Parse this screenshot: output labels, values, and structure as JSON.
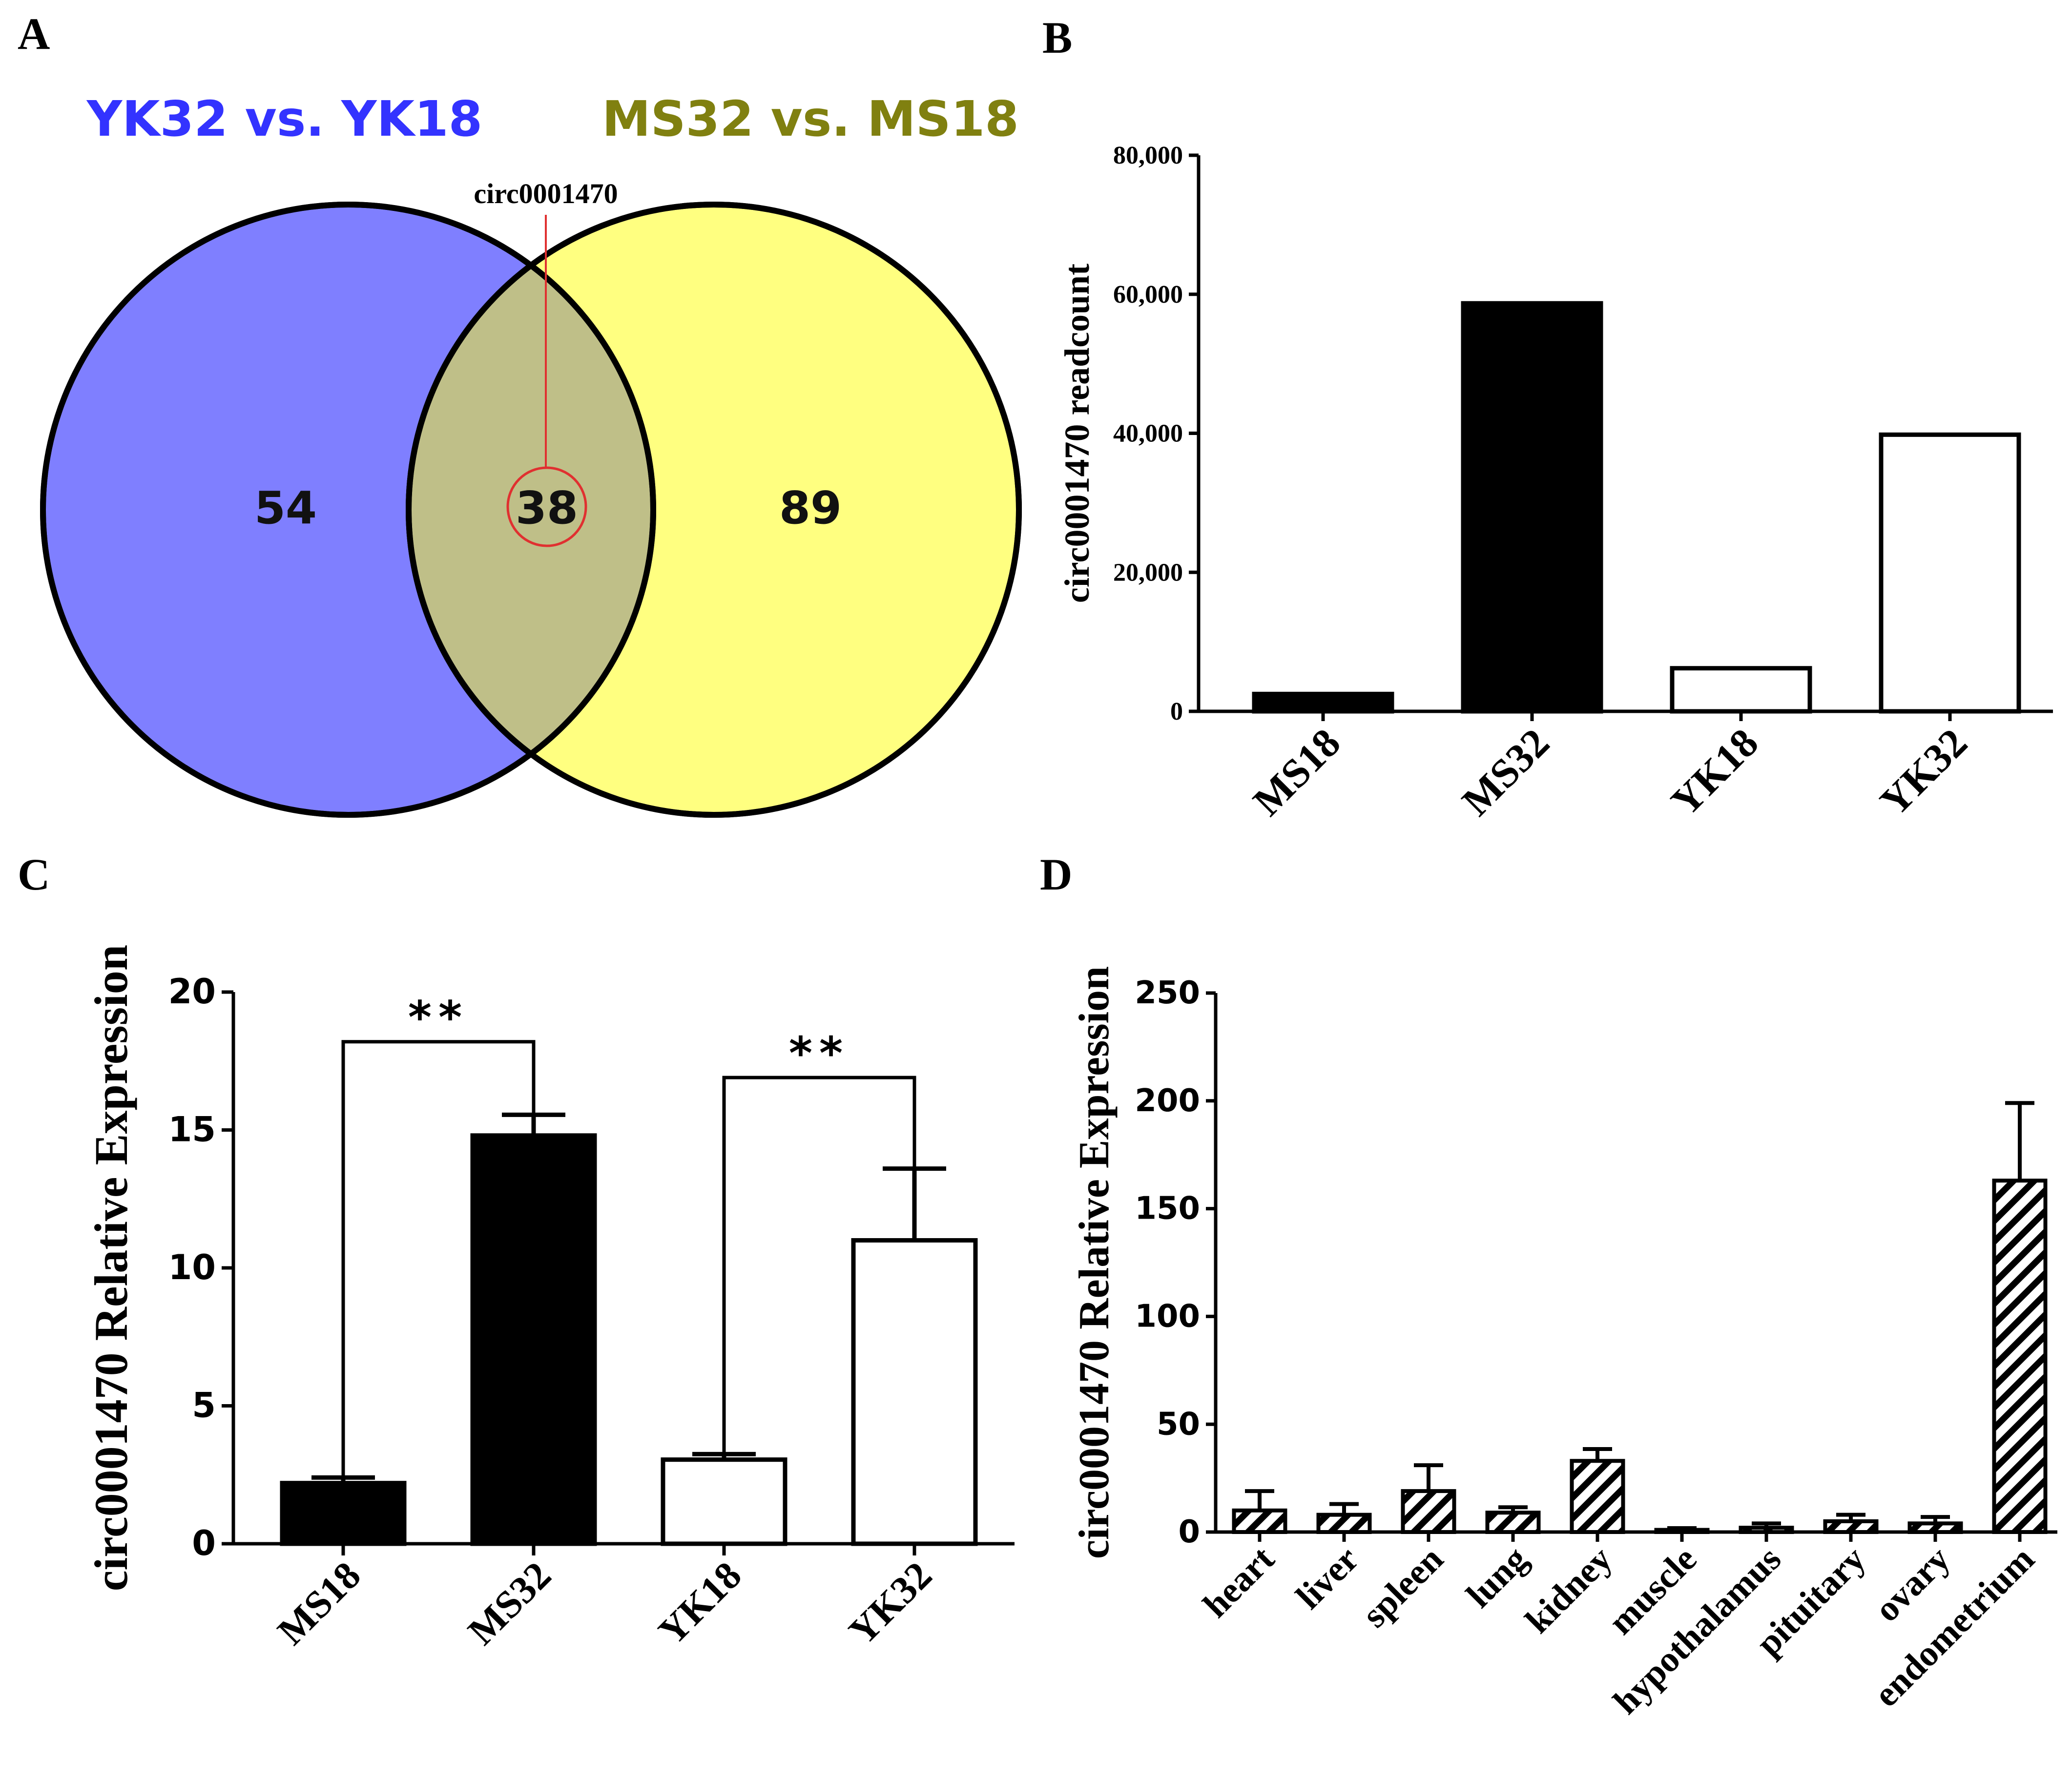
{
  "panel_labels": [
    "A",
    "B",
    "C",
    "D"
  ],
  "chart_data": [
    {
      "panel": "A",
      "type": "venn",
      "sets": [
        {
          "name": "YK32 vs. YK18",
          "only_count": "54",
          "color": "#7F7FFF",
          "title_color": "#3333FF"
        },
        {
          "name": "MS32 vs. MS18",
          "only_count": "89",
          "color": "#FFFF80",
          "title_color": "#808010"
        }
      ],
      "intersection": {
        "count": "38",
        "color": "#BFBF88"
      },
      "annotation": "circ0001470",
      "annotation_color": "#E03030"
    },
    {
      "panel": "B",
      "type": "bar",
      "ylabel": "circ0001470 readcount",
      "ylim": [
        0,
        80000
      ],
      "yticks": [
        0,
        20000,
        40000,
        60000,
        80000
      ],
      "ytick_labels": [
        "0",
        "20,000",
        "40,000",
        "60,000",
        "80,000"
      ],
      "categories": [
        "MS18",
        "MS32",
        "YK18",
        "YK32"
      ],
      "values": [
        2500,
        58700,
        6200,
        39800
      ],
      "fills": [
        "black",
        "black",
        "white",
        "white"
      ]
    },
    {
      "panel": "C",
      "type": "bar",
      "ylabel": "circ0001470 Relative Expression",
      "ylim": [
        0,
        20
      ],
      "yticks": [
        0,
        5,
        10,
        15,
        20
      ],
      "ytick_labels": [
        "0",
        "5",
        "10",
        "15",
        "20"
      ],
      "categories": [
        "MS18",
        "MS32",
        "YK18",
        "YK32"
      ],
      "values": [
        2.2,
        14.8,
        3.05,
        11.0
      ],
      "errors": [
        0.2,
        0.75,
        0.2,
        2.6
      ],
      "fills": [
        "black",
        "black",
        "white",
        "white"
      ],
      "significance": [
        {
          "from": 0,
          "to": 1,
          "label": "**",
          "level": 18.2
        },
        {
          "from": 2,
          "to": 3,
          "label": "**",
          "level": 16.9
        }
      ]
    },
    {
      "panel": "D",
      "type": "bar",
      "ylabel": "circ0001470 Relative Expression",
      "ylim": [
        0,
        250
      ],
      "yticks": [
        0,
        50,
        100,
        150,
        200,
        250
      ],
      "ytick_labels": [
        "0",
        "50",
        "100",
        "150",
        "200",
        "250"
      ],
      "categories": [
        "heart",
        "liver",
        "spleen",
        "lung",
        "kidney",
        "muscle",
        "hypothalamus",
        "pituitary",
        "ovary",
        "endometrium"
      ],
      "values": [
        10,
        8,
        19,
        9,
        33,
        1,
        2,
        5,
        4,
        163
      ],
      "errors": [
        9,
        5,
        12,
        2.5,
        5.5,
        0.8,
        2,
        3,
        3,
        36
      ],
      "fill_pattern": "diagonal-hatch"
    }
  ]
}
